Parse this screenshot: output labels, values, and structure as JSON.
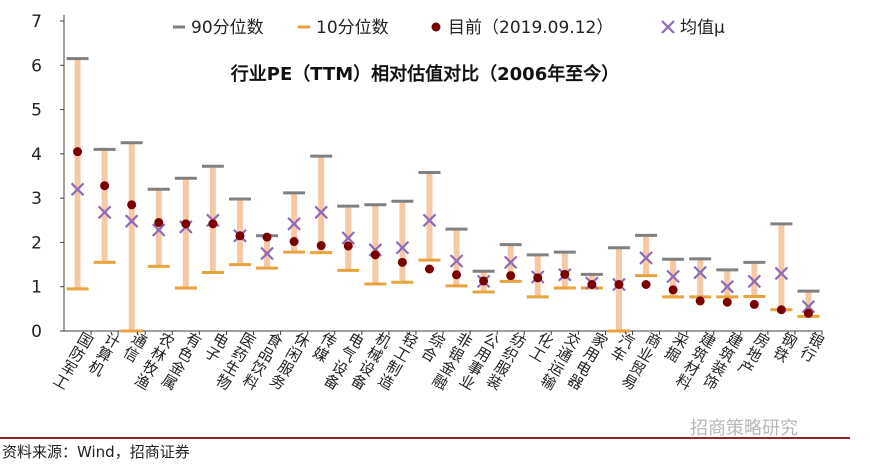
{
  "chart_data": {
    "type": "range",
    "title": "行业PE（TTM）相对估值对比（2006年至今）",
    "ylim": [
      0,
      7
    ],
    "yticks": [
      "0",
      "1",
      "2",
      "3",
      "4",
      "5",
      "6",
      "7"
    ],
    "legend": {
      "placement": "top",
      "items": [
        {
          "key": "p90",
          "label": "90分位数"
        },
        {
          "key": "p10",
          "label": "10分位数"
        },
        {
          "key": "current",
          "label": "目前（2019.09.12）"
        },
        {
          "key": "mean",
          "label": "均值μ"
        }
      ]
    },
    "colors": {
      "range_bar": "#f6c9a4",
      "p90": "#808080",
      "p10": "#e8a33d",
      "current": "#7a0000",
      "mean": "#8e6bb8",
      "axis": "#404040"
    },
    "categories": [
      "国防军工",
      "计算机",
      "通信",
      "农林牧渔",
      "有色金属",
      "电子",
      "医药生物",
      "食品饮料",
      "休闲服务",
      "传媒",
      "电气设备",
      "机械设备",
      "轻工制造",
      "综合",
      "非银金融",
      "公用事业",
      "纺织服装",
      "化工",
      "交通运输",
      "家用电器",
      "汽车",
      "商业贸易",
      "采掘",
      "建筑材料",
      "建筑装饰",
      "房地产",
      "钢铁",
      "银行"
    ],
    "series": [
      {
        "name": "90分位数",
        "values": [
          6.15,
          4.1,
          4.25,
          3.2,
          3.45,
          3.72,
          2.98,
          2.15,
          3.12,
          3.95,
          2.82,
          2.85,
          2.93,
          3.58,
          2.3,
          1.35,
          1.95,
          1.72,
          1.78,
          1.28,
          1.88,
          2.16,
          1.62,
          1.63,
          1.38,
          1.55,
          2.42,
          0.9
        ]
      },
      {
        "name": "10分位数",
        "values": [
          0.95,
          1.55,
          0.0,
          1.46,
          0.97,
          1.32,
          1.5,
          1.42,
          1.78,
          1.77,
          1.37,
          1.06,
          1.1,
          1.6,
          1.02,
          0.88,
          1.12,
          0.77,
          0.97,
          0.97,
          0.0,
          1.25,
          0.77,
          0.77,
          0.77,
          0.78,
          0.48,
          0.33
        ]
      },
      {
        "name": "目前（2019.09.12）",
        "values": [
          4.05,
          3.28,
          2.85,
          2.45,
          2.42,
          2.42,
          2.15,
          2.12,
          2.02,
          1.93,
          1.92,
          1.72,
          1.55,
          1.4,
          1.27,
          1.13,
          1.25,
          1.2,
          1.28,
          1.05,
          1.05,
          1.05,
          0.93,
          0.68,
          0.65,
          0.6,
          0.48,
          0.4
        ]
      },
      {
        "name": "均值μ",
        "values": [
          3.2,
          2.68,
          2.48,
          2.28,
          2.35,
          2.5,
          2.15,
          1.75,
          2.42,
          2.68,
          2.1,
          1.83,
          1.88,
          2.5,
          1.58,
          1.12,
          1.55,
          1.22,
          1.27,
          1.08,
          1.05,
          1.65,
          1.23,
          1.32,
          1.0,
          1.12,
          1.3,
          0.55
        ]
      }
    ]
  },
  "footer": {
    "source": "资料来源：Wind，招商证券",
    "watermark": "招商策略研究"
  }
}
